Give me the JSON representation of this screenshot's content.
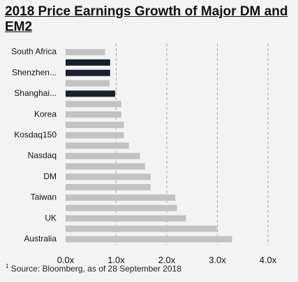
{
  "chart_data": {
    "type": "bar",
    "orientation": "horizontal",
    "title": "2018 Price Earnings Growth of Major DM and EM2",
    "source_marker": "1",
    "source": "Source: Bloomberg, as of 28 September 2018",
    "categories": [
      "South Africa",
      "",
      "Shenzhen...",
      "",
      "Shanghai...",
      "",
      "Korea",
      "",
      "Kosdaq150",
      "",
      "Nasdaq",
      "",
      "DM",
      "",
      "Taiwan",
      "",
      "UK",
      "",
      "Australia"
    ],
    "values": [
      0.78,
      0.88,
      0.88,
      0.87,
      0.98,
      1.1,
      1.1,
      1.15,
      1.15,
      1.25,
      1.47,
      1.57,
      1.68,
      1.68,
      2.17,
      2.2,
      2.38,
      2.99,
      3.29
    ],
    "highlighted": [
      false,
      true,
      true,
      false,
      true,
      false,
      false,
      false,
      false,
      false,
      false,
      false,
      false,
      false,
      false,
      false,
      false,
      false,
      false
    ],
    "xlim": [
      0,
      4
    ],
    "xticks": [
      "0.0x",
      "1.0x",
      "2.0x",
      "3.0x",
      "4.0x"
    ],
    "xtick_values": [
      0,
      1,
      2,
      3,
      4
    ],
    "gridlines": "vertical dashed",
    "colors": {
      "bar": "#c2c2c2",
      "highlight": "#1a202b",
      "grid": "#a8a8a8"
    }
  }
}
